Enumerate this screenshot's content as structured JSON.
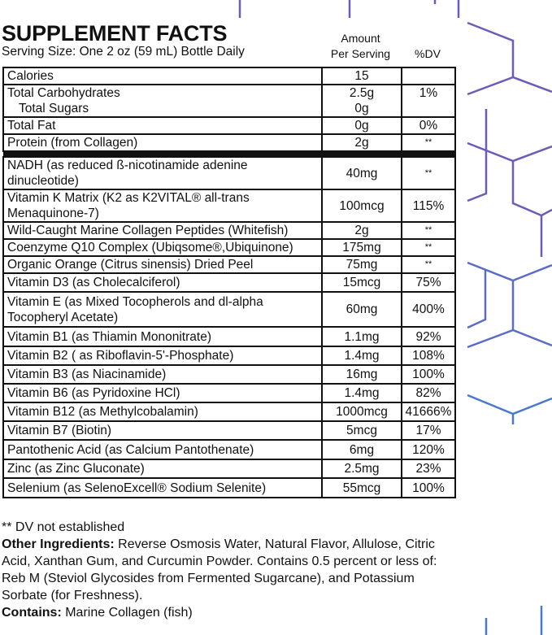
{
  "header": {
    "title": "SUPPLEMENT FACTS",
    "serving_size": "Serving Size: One 2 oz (59 mL) Bottle Daily",
    "amount_header_line1": "Amount",
    "amount_header_line2": "Per Serving",
    "dv_header": "%DV"
  },
  "rows": [
    {
      "name": "Calories",
      "amount": "15",
      "dv": ""
    },
    {
      "name": "Total Carbohydrates",
      "amount": "2.5g",
      "dv": "1%",
      "sub_name": "Total Sugars",
      "sub_amount": "0g"
    },
    {
      "name": "Total Fat",
      "amount": "0g",
      "dv": "0%"
    },
    {
      "name": "Protein (from Collagen)",
      "amount": "2g",
      "dv": "**"
    },
    {
      "name": "NADH (as reduced ß-nicotinamide adenine dinucleotide)",
      "amount": "40mg",
      "dv": "**"
    },
    {
      "name": "Vitamin K Matrix (K2 as K2VITAL® all-trans Menaquinone-7)",
      "amount": "100mcg",
      "dv": "115%"
    },
    {
      "name": "Wild-Caught Marine Collagen Peptides (Whitefish)",
      "amount": "2g",
      "dv": "**"
    },
    {
      "name": "Coenzyme Q10 Complex (Ubiqsome®,Ubiquinone)",
      "amount": "175mg",
      "dv": "**"
    },
    {
      "name": "Organic Orange (Citrus sinensis) Dried Peel",
      "amount": "75mg",
      "dv": "**"
    },
    {
      "name": "Vitamin D3 (as Cholecalciferol)",
      "amount": "15mcg",
      "dv": "75%"
    },
    {
      "name": "Vitamin E (as Mixed Tocopherols and dl-alpha Tocopheryl Acetate)",
      "amount": "60mg",
      "dv": "400%"
    },
    {
      "name": "Vitamin B1 (as Thiamin Mononitrate)",
      "amount": "1.1mg",
      "dv": "92%"
    },
    {
      "name": "Vitamin B2 ( as Riboflavin-5'-Phosphate)",
      "amount": "1.4mg",
      "dv": "108%"
    },
    {
      "name": "Vitamin B3 (as Niacinamide)",
      "amount": "16mg",
      "dv": "100%"
    },
    {
      "name": "Vitamin B6 (as Pyridoxine HCl)",
      "amount": "1.4mg",
      "dv": "82%"
    },
    {
      "name": "Vitamin B12 (as Methylcobalamin)",
      "amount": "1000mcg",
      "dv": "41666%"
    },
    {
      "name": "Vitamin B7 (Biotin)",
      "amount": "5mcg",
      "dv": "17%"
    },
    {
      "name": "Pantothenic Acid (as Calcium Pantothenate)",
      "amount": "6mg",
      "dv": "120%"
    },
    {
      "name": "Zinc (as Zinc Gluconate)",
      "amount": "2.5mg",
      "dv": "23%"
    },
    {
      "name": "Selenium (as SelenoExcell® Sodium Selenite)",
      "amount": "55mcg",
      "dv": "100%"
    }
  ],
  "footer": {
    "dv_note": "** DV not established",
    "other_label": "Other Ingredients:",
    "other_text": " Reverse Osmosis Water, Natural Flavor, Allulose, Citric Acid, Xanthan Gum, and Curcumin Powder. Contains 0.5 percent or less of: Reb M (Steviol Glycosides from Fermented Sugarcane), and Potassium Sorbate (for Freshness).",
    "contains_label": "Contains:",
    "contains_text": " Marine Collagen (fish)"
  },
  "colors": {
    "decor_purple": "#6a5cb8",
    "decor_blue": "#4a78d0",
    "text": "#111111"
  }
}
